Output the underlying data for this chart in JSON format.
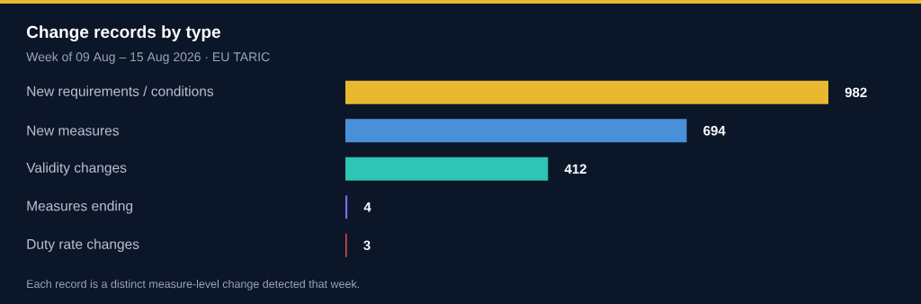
{
  "chart_data": {
    "type": "bar",
    "orientation": "horizontal",
    "title": "Change records by type",
    "subtitle": "Week of 09 Aug – 15 Aug 2026 · EU TARIC",
    "categories": [
      "New requirements / conditions",
      "New measures",
      "Validity changes",
      "Measures ending",
      "Duty rate changes"
    ],
    "values": [
      982,
      694,
      412,
      4,
      3
    ],
    "colors": [
      "#e8b930",
      "#4a90d9",
      "#2ec4b6",
      "#7b68ee",
      "#e04848"
    ],
    "value_labels": [
      "982",
      "694",
      "412",
      "4",
      "3"
    ],
    "annotations": [
      "Each record is a distinct measure-level change detected that week."
    ]
  }
}
